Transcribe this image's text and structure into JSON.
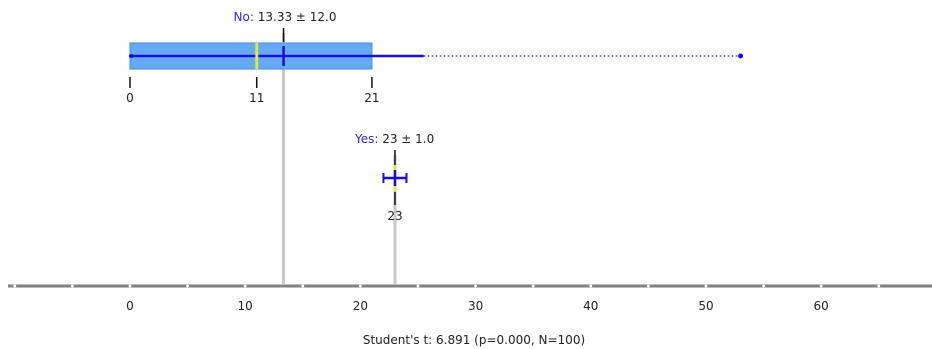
{
  "chart_data": {
    "type": "boxplot",
    "title": "",
    "x_axis": {
      "min": -10,
      "max": 70,
      "ticks": [
        0,
        10,
        20,
        30,
        40,
        50,
        60
      ],
      "tick_labels": [
        "0",
        "10",
        "20",
        "30",
        "40",
        "50",
        "60"
      ]
    },
    "footer": "Student's t: 6.891 (p=0.000, N=100)",
    "groups": [
      {
        "label_name": "No",
        "label_stats": "13.33 ± 12.0",
        "mean": 13.33,
        "sd": 12.0,
        "min": 0,
        "q1": 0,
        "median": 11,
        "q3": 21,
        "whisker_high": 25.5,
        "max": 53,
        "box_tick_labels": [
          "0",
          "11",
          "21"
        ],
        "box_tick_values": [
          0,
          11,
          21
        ]
      },
      {
        "label_name": "Yes",
        "label_stats": "23 ± 1.0",
        "mean": 23,
        "sd": 1.0,
        "min": 22,
        "median": 23,
        "max": 24,
        "box_tick_labels": [
          "23"
        ],
        "box_tick_values": [
          23
        ]
      }
    ],
    "colors": {
      "box_fill": "#66aaf7",
      "box_edge": "#3a8fe6",
      "whisker": "#1a0fd8",
      "median": "#e3e63c",
      "mean_line": "#c8c8c8",
      "axis": "#808080",
      "label": "#3b1fd6"
    }
  }
}
